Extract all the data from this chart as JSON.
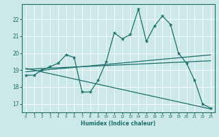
{
  "xlabel": "Humidex (Indice chaleur)",
  "ylabel": "",
  "background_color": "#cce8e8",
  "line_color": "#1a6e6a",
  "xlim": [
    -0.5,
    23.5
  ],
  "ylim": [
    16.5,
    22.9
  ],
  "yticks": [
    17,
    18,
    19,
    20,
    21,
    22
  ],
  "xticks": [
    0,
    1,
    2,
    3,
    4,
    5,
    6,
    7,
    8,
    9,
    10,
    11,
    12,
    13,
    14,
    15,
    16,
    17,
    18,
    19,
    20,
    21,
    22,
    23
  ],
  "main_line_x": [
    0,
    1,
    2,
    3,
    4,
    5,
    6,
    7,
    8,
    9,
    10,
    11,
    12,
    13,
    14,
    15,
    16,
    17,
    18,
    19,
    20,
    21,
    22,
    23
  ],
  "main_line_y": [
    18.7,
    18.7,
    19.0,
    19.2,
    19.4,
    19.9,
    19.75,
    17.7,
    17.7,
    18.4,
    19.5,
    21.2,
    20.85,
    21.1,
    22.6,
    20.7,
    21.6,
    22.2,
    21.7,
    20.0,
    19.4,
    18.4,
    17.0,
    16.75
  ],
  "trend_line1_x": [
    0,
    23
  ],
  "trend_line1_y": [
    19.05,
    19.55
  ],
  "trend_line2_x": [
    0,
    23
  ],
  "trend_line2_y": [
    18.9,
    19.9
  ],
  "trend_line3_x": [
    0,
    23
  ],
  "trend_line3_y": [
    19.1,
    16.7
  ]
}
